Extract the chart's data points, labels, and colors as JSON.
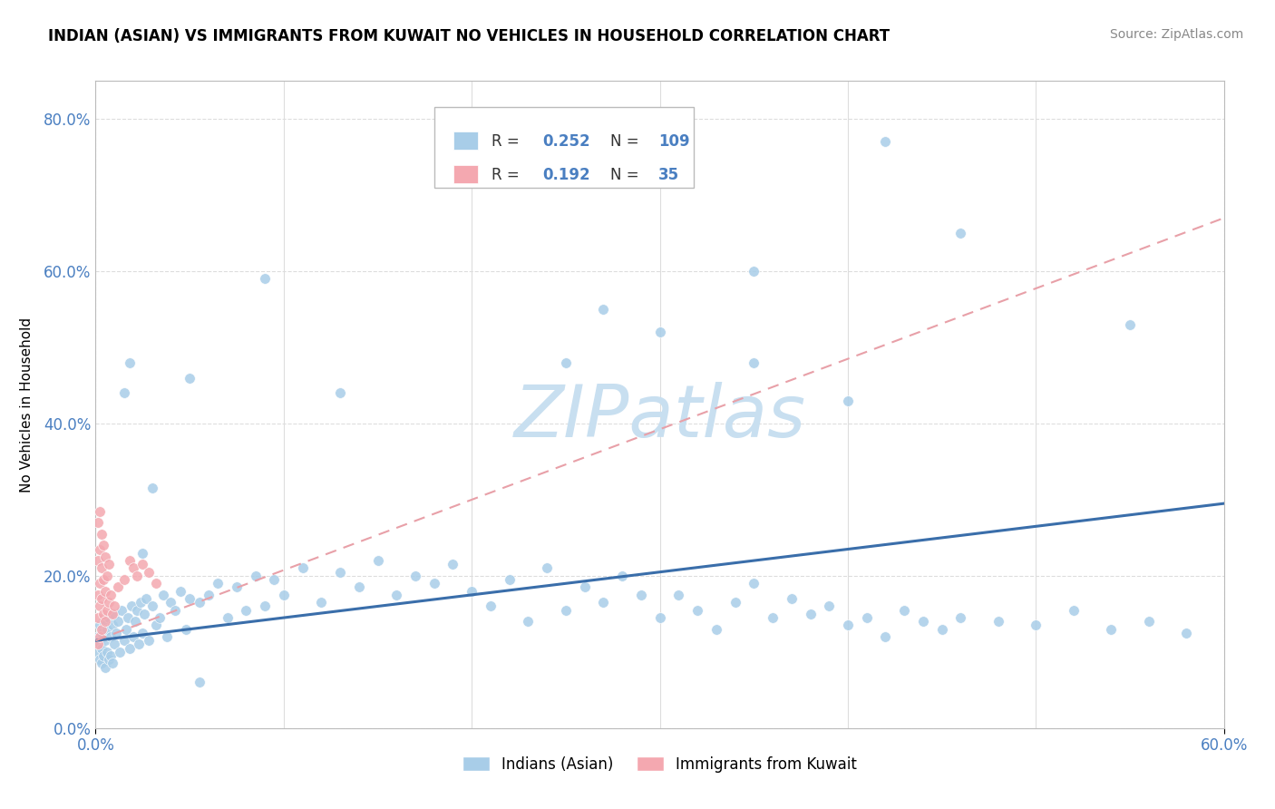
{
  "title": "INDIAN (ASIAN) VS IMMIGRANTS FROM KUWAIT NO VEHICLES IN HOUSEHOLD CORRELATION CHART",
  "source": "Source: ZipAtlas.com",
  "ylabel": "No Vehicles in Household",
  "xrange": [
    0.0,
    0.6
  ],
  "yrange": [
    0.0,
    0.85
  ],
  "ytick_vals": [
    0.0,
    0.2,
    0.4,
    0.6,
    0.8
  ],
  "legend_blue_r": "0.252",
  "legend_blue_n": "109",
  "legend_pink_r": "0.192",
  "legend_pink_n": "35",
  "legend_label_blue": "Indians (Asian)",
  "legend_label_pink": "Immigrants from Kuwait",
  "blue_color": "#a8cde8",
  "pink_color": "#f4a8b0",
  "blue_line_color": "#3a6eaa",
  "pink_line_color": "#e8a0a8",
  "blue_line_y0": 0.115,
  "blue_line_y1": 0.295,
  "pink_line_y0": 0.115,
  "pink_line_y1": 0.67,
  "watermark_text": "ZIPatlas",
  "watermark_color": "#c8dff0",
  "background_color": "#ffffff",
  "grid_color": "#dddddd",
  "tick_label_color": "#4a7fc1",
  "title_fontsize": 12,
  "source_fontsize": 10,
  "axis_label_fontsize": 11,
  "legend_fontsize": 12,
  "note_fontsize": 12,
  "blue_scatter_x": [
    0.001,
    0.001,
    0.002,
    0.002,
    0.002,
    0.003,
    0.003,
    0.003,
    0.004,
    0.004,
    0.005,
    0.005,
    0.006,
    0.006,
    0.007,
    0.007,
    0.008,
    0.008,
    0.009,
    0.009,
    0.01,
    0.01,
    0.011,
    0.012,
    0.013,
    0.014,
    0.015,
    0.016,
    0.017,
    0.018,
    0.019,
    0.02,
    0.021,
    0.022,
    0.023,
    0.024,
    0.025,
    0.026,
    0.027,
    0.028,
    0.03,
    0.032,
    0.034,
    0.036,
    0.038,
    0.04,
    0.042,
    0.045,
    0.048,
    0.05,
    0.055,
    0.06,
    0.065,
    0.07,
    0.075,
    0.08,
    0.085,
    0.09,
    0.095,
    0.1,
    0.11,
    0.12,
    0.13,
    0.14,
    0.15,
    0.16,
    0.17,
    0.18,
    0.19,
    0.2,
    0.21,
    0.22,
    0.23,
    0.24,
    0.25,
    0.26,
    0.27,
    0.28,
    0.29,
    0.3,
    0.31,
    0.32,
    0.33,
    0.34,
    0.35,
    0.36,
    0.37,
    0.38,
    0.39,
    0.4,
    0.41,
    0.42,
    0.43,
    0.44,
    0.45,
    0.46,
    0.48,
    0.5,
    0.52,
    0.54,
    0.56,
    0.58,
    0.03,
    0.025,
    0.015,
    0.055,
    0.018,
    0.09,
    0.13
  ],
  "blue_scatter_y": [
    0.12,
    0.1,
    0.135,
    0.11,
    0.09,
    0.125,
    0.105,
    0.085,
    0.14,
    0.095,
    0.115,
    0.08,
    0.13,
    0.1,
    0.145,
    0.09,
    0.12,
    0.095,
    0.135,
    0.085,
    0.15,
    0.11,
    0.125,
    0.14,
    0.1,
    0.155,
    0.115,
    0.13,
    0.145,
    0.105,
    0.16,
    0.12,
    0.14,
    0.155,
    0.11,
    0.165,
    0.125,
    0.15,
    0.17,
    0.115,
    0.16,
    0.135,
    0.145,
    0.175,
    0.12,
    0.165,
    0.155,
    0.18,
    0.13,
    0.17,
    0.165,
    0.175,
    0.19,
    0.145,
    0.185,
    0.155,
    0.2,
    0.16,
    0.195,
    0.175,
    0.21,
    0.165,
    0.205,
    0.185,
    0.22,
    0.175,
    0.2,
    0.19,
    0.215,
    0.18,
    0.16,
    0.195,
    0.14,
    0.21,
    0.155,
    0.185,
    0.165,
    0.2,
    0.175,
    0.145,
    0.175,
    0.155,
    0.13,
    0.165,
    0.19,
    0.145,
    0.17,
    0.15,
    0.16,
    0.135,
    0.145,
    0.12,
    0.155,
    0.14,
    0.13,
    0.145,
    0.14,
    0.135,
    0.155,
    0.13,
    0.14,
    0.125,
    0.315,
    0.23,
    0.44,
    0.06,
    0.48,
    0.59,
    0.44
  ],
  "blue_outlier_x": [
    0.42,
    0.46,
    0.35,
    0.27,
    0.05,
    0.55,
    0.35,
    0.4,
    0.3,
    0.25
  ],
  "blue_outlier_y": [
    0.77,
    0.65,
    0.6,
    0.55,
    0.46,
    0.53,
    0.48,
    0.43,
    0.52,
    0.48
  ],
  "pink_scatter_x": [
    0.001,
    0.001,
    0.001,
    0.001,
    0.001,
    0.002,
    0.002,
    0.002,
    0.002,
    0.002,
    0.003,
    0.003,
    0.003,
    0.003,
    0.004,
    0.004,
    0.004,
    0.005,
    0.005,
    0.005,
    0.006,
    0.006,
    0.007,
    0.007,
    0.008,
    0.009,
    0.01,
    0.012,
    0.015,
    0.018,
    0.02,
    0.022,
    0.025,
    0.028,
    0.032
  ],
  "pink_scatter_y": [
    0.27,
    0.22,
    0.175,
    0.145,
    0.11,
    0.285,
    0.235,
    0.19,
    0.16,
    0.12,
    0.255,
    0.21,
    0.17,
    0.13,
    0.24,
    0.195,
    0.15,
    0.225,
    0.18,
    0.14,
    0.2,
    0.155,
    0.215,
    0.165,
    0.175,
    0.15,
    0.16,
    0.185,
    0.195,
    0.22,
    0.21,
    0.2,
    0.215,
    0.205,
    0.19
  ]
}
